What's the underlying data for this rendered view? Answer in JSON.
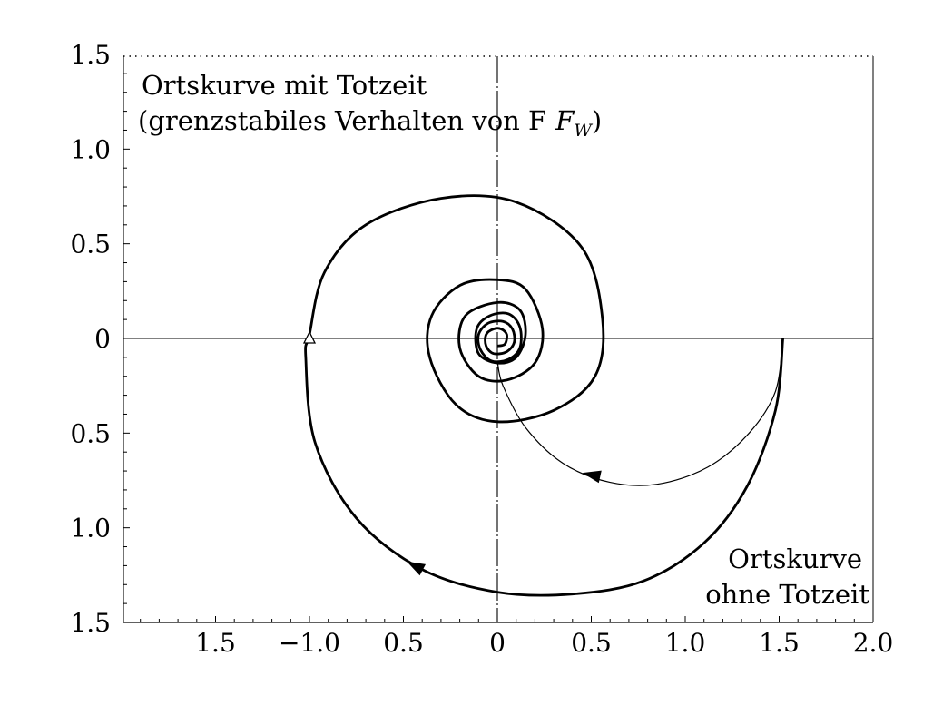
{
  "chart_data": {
    "type": "line",
    "title": "",
    "xlabel": "",
    "ylabel": "",
    "xlim": [
      -2.0,
      2.0
    ],
    "ylim": [
      -1.5,
      1.5
    ],
    "grid": false,
    "x_ticks": [
      -1.5,
      -1.0,
      -0.5,
      0,
      0.5,
      1.0,
      1.5,
      2.0
    ],
    "x_tick_labels": [
      "1.5",
      "−1.0",
      "0.5",
      "0",
      "0.5",
      "1.0",
      "1.5",
      "2.0"
    ],
    "y_ticks": [
      1.5,
      1.0,
      0.5,
      0,
      -0.5,
      -1.0,
      -1.5
    ],
    "y_tick_labels": [
      "1.5",
      "1.0",
      "0.5",
      "0",
      "0.5",
      "1.0",
      "1.5"
    ],
    "annotations": {
      "with_deadtime_line1": "Ortskurve  mit Totzeit",
      "with_deadtime_line2": "(grenzstabiles Verhalten von F",
      "with_deadtime_sub": "W",
      "with_deadtime_close": ")",
      "without_deadtime_line1": "Ortskurve",
      "without_deadtime_line2": "ohne  Totzeit"
    },
    "critical_point": [
      -1,
      0
    ],
    "series": [
      {
        "style": "thick",
        "description_points": [
          [
            1.52,
            0
          ],
          [
            1.48,
            -0.38
          ],
          [
            1.33,
            -0.78
          ],
          [
            1.1,
            -1.08
          ],
          [
            0.78,
            -1.28
          ],
          [
            0.4,
            -1.35
          ],
          [
            0,
            -1.34
          ],
          [
            -0.4,
            -1.22
          ],
          [
            -0.75,
            -0.95
          ],
          [
            -0.97,
            -0.55
          ],
          [
            -1.02,
            -0.1
          ],
          [
            -1.0,
            0.02
          ],
          [
            -0.92,
            0.35
          ],
          [
            -0.7,
            0.6
          ],
          [
            -0.3,
            0.74
          ],
          [
            0.1,
            0.72
          ],
          [
            0.45,
            0.48
          ],
          [
            0.56,
            0.1
          ],
          [
            0.52,
            -0.2
          ],
          [
            0.3,
            -0.38
          ],
          [
            0,
            -0.44
          ],
          [
            -0.22,
            -0.35
          ],
          [
            -0.36,
            -0.1
          ],
          [
            -0.35,
            0.12
          ],
          [
            -0.2,
            0.28
          ],
          [
            0,
            0.31
          ],
          [
            0.15,
            0.26
          ],
          [
            0.24,
            0.05
          ],
          [
            0.2,
            -0.13
          ],
          [
            0.05,
            -0.22
          ],
          [
            -0.1,
            -0.2
          ],
          [
            -0.2,
            -0.05
          ],
          [
            -0.17,
            0.12
          ],
          [
            0,
            0.19
          ],
          [
            0.12,
            0.15
          ],
          [
            0.15,
            0.02
          ],
          [
            0.1,
            -0.1
          ],
          [
            0,
            -0.13
          ],
          [
            -0.1,
            -0.08
          ],
          [
            -0.11,
            0.05
          ],
          [
            -0.04,
            0.12
          ],
          [
            0.06,
            0.13
          ],
          [
            0.12,
            0.06
          ],
          [
            0.12,
            -0.05
          ],
          [
            0.06,
            -0.11
          ],
          [
            -0.03,
            -0.12
          ],
          [
            -0.09,
            -0.06
          ],
          [
            -0.1,
            0.02
          ],
          [
            -0.05,
            0.08
          ],
          [
            0.03,
            0.09
          ],
          [
            0.08,
            0.05
          ],
          [
            0.09,
            -0.02
          ],
          [
            0.05,
            -0.07
          ],
          [
            -0.02,
            -0.08
          ],
          [
            -0.06,
            -0.04
          ],
          [
            -0.06,
            0.02
          ],
          [
            -0.02,
            0.05
          ],
          [
            0.02,
            0.05
          ],
          [
            0.05,
            0.02
          ],
          [
            0.04,
            -0.03
          ],
          [
            0,
            -0.04
          ]
        ],
        "arrows_at": [
          [
            -0.44,
            -1.2
          ]
        ]
      },
      {
        "style": "thin",
        "description_points": [
          [
            1.52,
            0
          ],
          [
            1.48,
            -0.28
          ],
          [
            1.34,
            -0.5
          ],
          [
            1.12,
            -0.68
          ],
          [
            0.85,
            -0.77
          ],
          [
            0.6,
            -0.76
          ],
          [
            0.35,
            -0.66
          ],
          [
            0.15,
            -0.47
          ],
          [
            0.03,
            -0.25
          ],
          [
            0,
            -0.12
          ]
        ],
        "arrows_at": [
          [
            0.5,
            -0.72
          ]
        ]
      }
    ]
  }
}
